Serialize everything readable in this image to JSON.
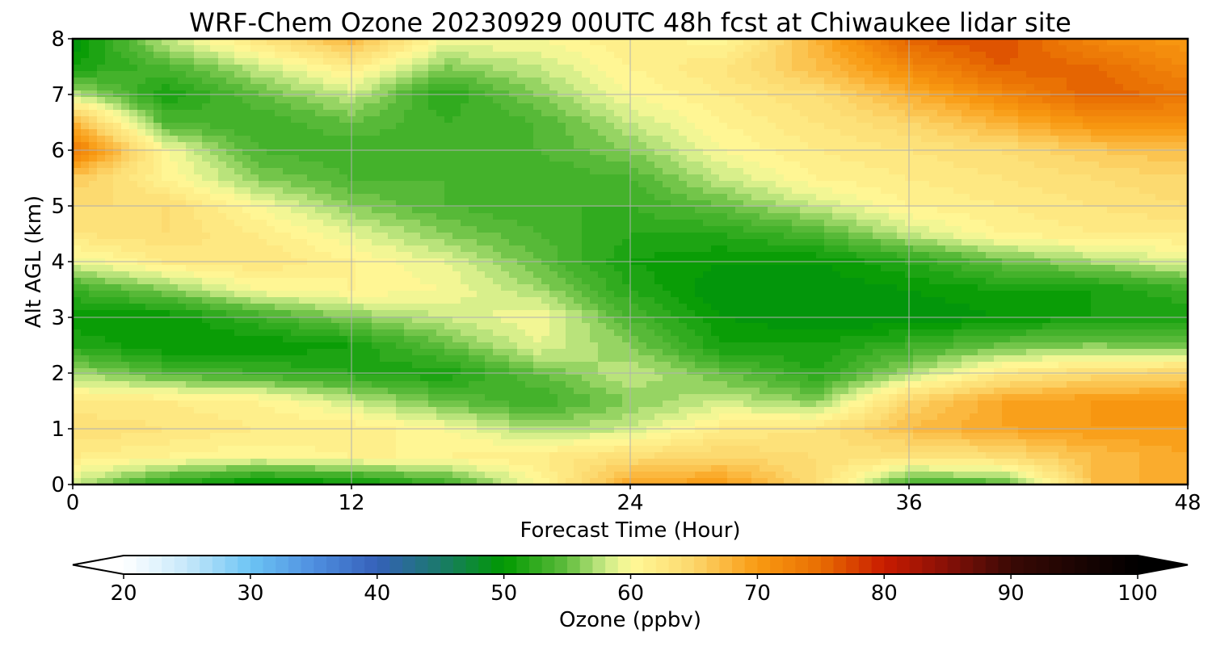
{
  "chart_data": {
    "type": "heatmap",
    "title": "WRF-Chem Ozone  20230929 00UTC 48h fcst at Chiwaukee lidar site",
    "xlabel": "Forecast Time (Hour)",
    "ylabel": "Alt AGL (km)",
    "xlim": [
      0,
      48
    ],
    "ylim": [
      0,
      8
    ],
    "xticks": [
      "0",
      "12",
      "24",
      "36",
      "48"
    ],
    "yticks": [
      "0",
      "1",
      "2",
      "3",
      "4",
      "5",
      "6",
      "7",
      "8"
    ],
    "grid": true,
    "x": [
      0,
      4,
      8,
      12,
      16,
      20,
      24,
      28,
      32,
      36,
      40,
      44,
      48
    ],
    "y": [
      0,
      0.5,
      1,
      1.5,
      2,
      2.5,
      3,
      3.5,
      4,
      4.5,
      5,
      5.5,
      6,
      6.5,
      7,
      7.5,
      8
    ],
    "z": [
      [
        58,
        52,
        49,
        50,
        53,
        60,
        69,
        70,
        64,
        53,
        54,
        67,
        69
      ],
      [
        62,
        61,
        60,
        61,
        61,
        62,
        64,
        65,
        64,
        63,
        64,
        67,
        69
      ],
      [
        64,
        63,
        62,
        62,
        60,
        57,
        58,
        62,
        63,
        67,
        69,
        70,
        70
      ],
      [
        62,
        62,
        61,
        58,
        55,
        53,
        56,
        58,
        56,
        65,
        69,
        70,
        70
      ],
      [
        57,
        54,
        53,
        52,
        51,
        55,
        58,
        55,
        52,
        57,
        62,
        64,
        65
      ],
      [
        52,
        50,
        50,
        51,
        55,
        59,
        56,
        51,
        51,
        53,
        55,
        56,
        55
      ],
      [
        50,
        50,
        53,
        56,
        58,
        60,
        54,
        50,
        49,
        49,
        50,
        51,
        51
      ],
      [
        53,
        56,
        60,
        61,
        60,
        57,
        52,
        49,
        49,
        50,
        51,
        51,
        53
      ],
      [
        59,
        62,
        63,
        61,
        59,
        55,
        51,
        50,
        50,
        52,
        55,
        57,
        59
      ],
      [
        63,
        64,
        62,
        59,
        56,
        54,
        52,
        52,
        54,
        58,
        61,
        62,
        62
      ],
      [
        64,
        64,
        60,
        56,
        54,
        53,
        53,
        55,
        58,
        61,
        62,
        63,
        64
      ],
      [
        66,
        61,
        56,
        54,
        54,
        53,
        54,
        58,
        61,
        62,
        63,
        64,
        65
      ],
      [
        74,
        60,
        54,
        53,
        54,
        54,
        56,
        60,
        62,
        63,
        64,
        66,
        67
      ],
      [
        68,
        54,
        53,
        55,
        53,
        54,
        58,
        61,
        63,
        65,
        68,
        71,
        71
      ],
      [
        58,
        51,
        55,
        58,
        52,
        56,
        60,
        62,
        64,
        68,
        72,
        76,
        74
      ],
      [
        51,
        54,
        58,
        62,
        56,
        58,
        61,
        63,
        67,
        72,
        76,
        75,
        72
      ],
      [
        49,
        58,
        63,
        68,
        60,
        60,
        62,
        60,
        68,
        76,
        77,
        72,
        70
      ]
    ],
    "colorbar": {
      "label": "Ozone  (ppbv)",
      "min": 20,
      "max": 100,
      "ticks": [
        "20",
        "30",
        "40",
        "50",
        "60",
        "70",
        "80",
        "90",
        "100"
      ],
      "extend": "both",
      "orientation": "horizontal",
      "colors": [
        "#ffffff",
        "#c6e8fa",
        "#6cc4f4",
        "#4f8fe0",
        "#3560b9",
        "#1a7a6a",
        "#009900",
        "#61bd3e",
        "#cbeb87",
        "#fffa98",
        "#fcd66b",
        "#f99a12",
        "#e86d02",
        "#c91b00",
        "#861007",
        "#3a0905",
        "#000000"
      ],
      "color_stops": [
        20,
        25,
        30,
        35,
        40,
        45,
        50,
        55,
        58,
        60,
        65,
        70,
        75,
        80,
        85,
        90,
        100
      ]
    }
  }
}
